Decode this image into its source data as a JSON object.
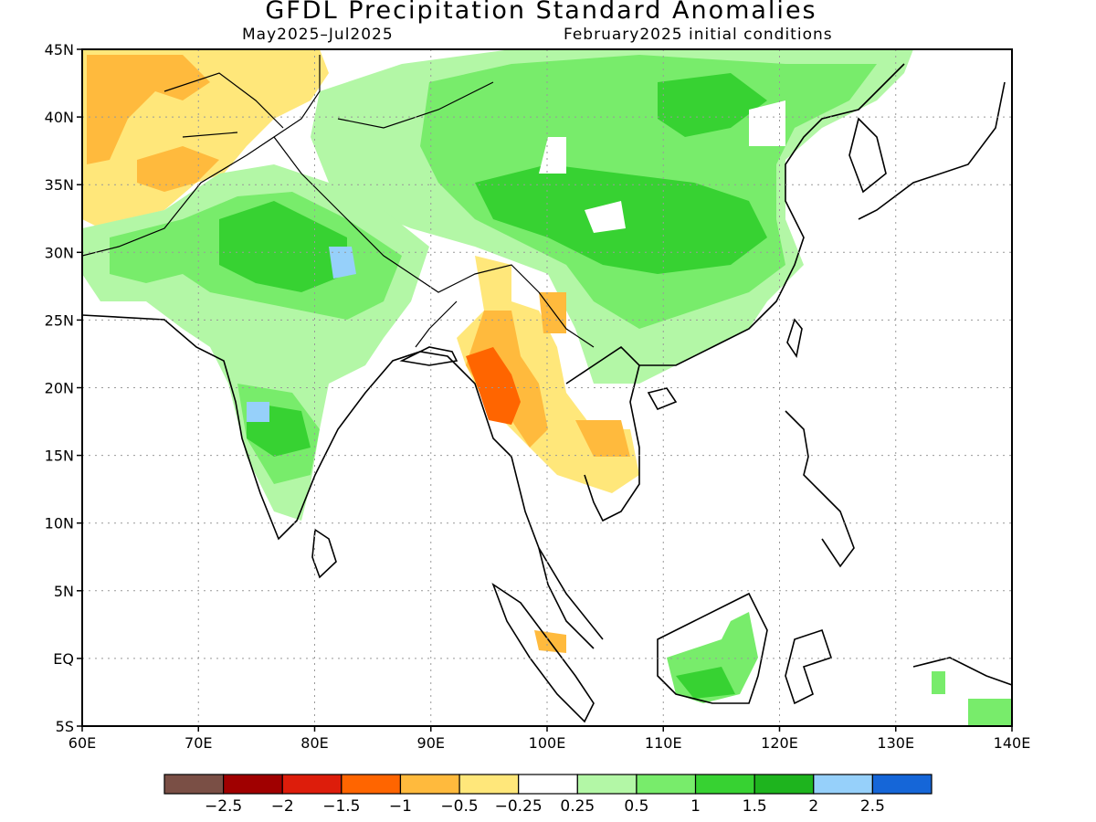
{
  "title": "GFDL Precipitation Standard Anomalies",
  "subtitle_left": "May2025–Jul2025",
  "subtitle_right": "February2025 initial conditions",
  "map": {
    "lon_range": [
      60,
      140
    ],
    "lat_range": [
      -5,
      45
    ],
    "lon_ticks": [
      "60E",
      "70E",
      "80E",
      "90E",
      "100E",
      "110E",
      "120E",
      "130E",
      "140E"
    ],
    "lat_ticks": [
      "5S",
      "EQ",
      "5N",
      "10N",
      "15N",
      "20N",
      "25N",
      "30N",
      "35N",
      "40N",
      "45N"
    ],
    "grid": true
  },
  "colorbar": {
    "colors": [
      "#7a4f45",
      "#a00000",
      "#dd1d0b",
      "#ff6500",
      "#ffba3d",
      "#ffe77a",
      "#ffffff",
      "#b3f7a6",
      "#78ec6b",
      "#37d232",
      "#1eb41e",
      "#96d0fa",
      "#1566d8"
    ],
    "labels": [
      "−2.5",
      "−2",
      "−1.5",
      "−1",
      "−0.5",
      "−0.25",
      "0.25",
      "0.5",
      "1",
      "1.5",
      "2",
      "2.5"
    ]
  }
}
